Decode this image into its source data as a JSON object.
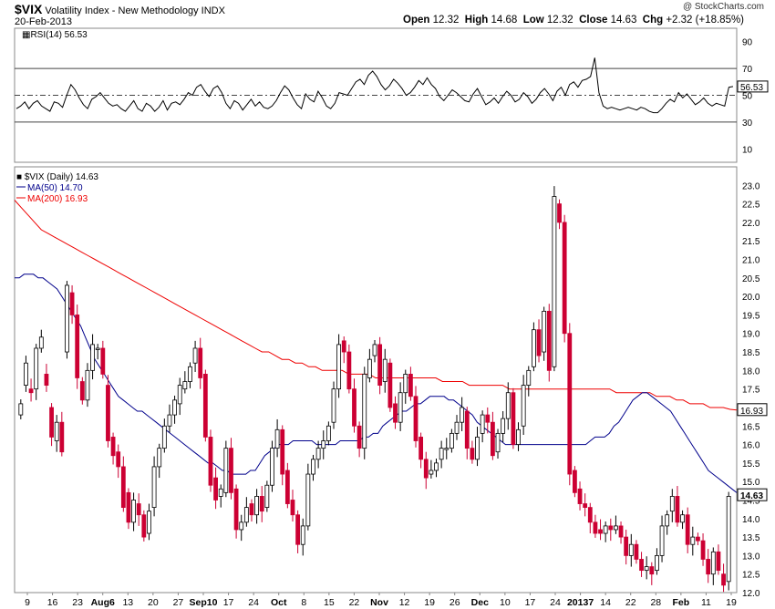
{
  "header": {
    "symbol": "$VIX",
    "name": "Volatility Index - New Methodology",
    "exchange": "INDX",
    "date": "20-Feb-2013",
    "open_label": "Open",
    "open": "12.32",
    "high_label": "High",
    "high": "14.68",
    "low_label": "Low",
    "low": "12.32",
    "close_label": "Close",
    "close": "14.63",
    "chg_label": "Chg",
    "chg": "+2.32 (+18.85%)",
    "watermark": "@ StockCharts.com"
  },
  "chart_data": [
    {
      "type": "line",
      "title": "RSI(14) 56.53",
      "ylim": [
        0,
        100
      ],
      "yticks": [
        "90",
        "70",
        "50",
        "30",
        "10"
      ],
      "reference_lines": [
        70,
        50,
        30
      ],
      "last_value_label": "56.53",
      "values": [
        40,
        42,
        45,
        40,
        44,
        46,
        42,
        40,
        38,
        45,
        44,
        41,
        50,
        58,
        54,
        48,
        43,
        40,
        47,
        49,
        52,
        48,
        44,
        42,
        43,
        40,
        38,
        42,
        46,
        40,
        38,
        44,
        42,
        38,
        41,
        46,
        39,
        44,
        45,
        43,
        47,
        52,
        50,
        56,
        58,
        53,
        49,
        55,
        57,
        52,
        44,
        40,
        46,
        44,
        39,
        43,
        47,
        42,
        45,
        41,
        40,
        42,
        46,
        52,
        57,
        54,
        48,
        43,
        40,
        51,
        47,
        45,
        53,
        48,
        42,
        40,
        44,
        52,
        51,
        50,
        55,
        60,
        62,
        58,
        65,
        68,
        64,
        58,
        54,
        57,
        62,
        59,
        55,
        50,
        52,
        56,
        61,
        58,
        63,
        58,
        55,
        49,
        46,
        50,
        54,
        52,
        49,
        46,
        45,
        51,
        55,
        49,
        43,
        45,
        48,
        44,
        49,
        53,
        50,
        45,
        47,
        52,
        49,
        44,
        47,
        52,
        55,
        51,
        46,
        53,
        56,
        50,
        58,
        60,
        56,
        61,
        62,
        64,
        78,
        52,
        42,
        40,
        41,
        40,
        39,
        40,
        41,
        40,
        39,
        41,
        40,
        38,
        37,
        37,
        40,
        44,
        47,
        45,
        52,
        48,
        51,
        47,
        43,
        45,
        48,
        44,
        42,
        44,
        43,
        42,
        56,
        56.5
      ]
    },
    {
      "type": "candlestick",
      "title": "$VIX (Daily) 14.63",
      "ylim": [
        12.0,
        23.5
      ],
      "yticks": [
        "23.0",
        "22.5",
        "22.0",
        "21.5",
        "21.0",
        "20.5",
        "20.0",
        "19.5",
        "19.0",
        "18.5",
        "18.0",
        "17.5",
        "17.0",
        "16.5",
        "16.0",
        "15.5",
        "15.0",
        "14.5",
        "14.0",
        "13.5",
        "13.0",
        "12.5",
        "12.0"
      ],
      "last_labels": [
        "16.93",
        "14.63"
      ],
      "series": [
        {
          "name": "MA(50) 14.70",
          "color": "#00008b"
        },
        {
          "name": "MA(200) 16.93",
          "color": "#ee0000"
        }
      ],
      "x_labels": [
        "9",
        "16",
        "23",
        "Aug6",
        "13",
        "20",
        "27",
        "Sep10",
        "17",
        "24",
        "Oct",
        "8",
        "15",
        "22",
        "Nov",
        "12",
        "19",
        "26",
        "Dec",
        "10",
        "17",
        "24",
        "20137",
        "14",
        "22",
        "28",
        "Feb",
        "11",
        "19"
      ],
      "close": [
        17.1,
        18.2,
        17.4,
        18.6,
        18.9,
        17.6,
        16.2,
        16.6,
        15.8,
        20.3,
        19.5,
        17.8,
        17.2,
        18.0,
        18.7,
        18.6,
        17.9,
        16.1,
        15.7,
        15.4,
        14.3,
        13.9,
        14.5,
        14.1,
        13.5,
        14.2,
        15.4,
        15.9,
        16.5,
        16.8,
        17.2,
        17.6,
        17.7,
        18.1,
        18.6,
        17.8,
        16.2,
        14.9,
        14.5,
        14.8,
        15.9,
        14.7,
        13.7,
        13.9,
        14.3,
        14.1,
        14.6,
        14.2,
        14.9,
        15.9,
        16.4,
        15.2,
        14.4,
        14.1,
        13.3,
        13.8,
        15.2,
        15.6,
        15.9,
        16.1,
        16.5,
        17.5,
        18.7,
        18.5,
        17.5,
        16.5,
        15.9,
        17.9,
        18.3,
        18.7,
        17.6,
        18.3,
        17.0,
        16.6,
        17.4,
        17.9,
        17.3,
        16.1,
        15.6,
        15.1,
        15.3,
        15.5,
        15.9,
        15.9,
        16.3,
        16.6,
        17.0,
        15.9,
        15.6,
        16.2,
        16.8,
        16.6,
        15.7,
        16.3,
        16.7,
        17.4,
        16.0,
        16.4,
        17.6,
        18.0,
        19.1,
        18.4,
        19.6,
        18.0,
        22.7,
        22.0,
        19.0,
        15.2,
        14.7,
        14.4,
        14.3,
        13.9,
        13.6,
        13.6,
        13.8,
        13.7,
        13.8,
        13.5,
        13.0,
        13.3,
        12.9,
        12.6,
        12.7,
        12.5,
        13.0,
        13.8,
        14.1,
        14.6,
        13.9,
        14.1,
        13.3,
        13.5,
        13.4,
        12.9,
        12.5,
        13.1,
        12.6,
        12.2,
        14.6
      ],
      "open": [
        16.8,
        17.6,
        17.5,
        17.5,
        18.6,
        17.9,
        17.0,
        16.1,
        16.6,
        18.5,
        20.1,
        19.5,
        17.7,
        17.2,
        18.0,
        18.6,
        18.6,
        17.6,
        16.2,
        15.8,
        15.4,
        14.7,
        13.9,
        14.4,
        14.1,
        13.6,
        14.3,
        15.4,
        15.9,
        16.5,
        16.8,
        17.1,
        17.5,
        17.7,
        18.2,
        18.6,
        17.9,
        16.2,
        15.1,
        14.6,
        14.7,
        15.9,
        14.8,
        13.7,
        13.9,
        14.4,
        14.1,
        14.6,
        14.3,
        14.9,
        15.9,
        16.4,
        15.3,
        14.5,
        14.1,
        13.3,
        13.8,
        15.2,
        15.6,
        15.9,
        16.1,
        16.6,
        17.5,
        18.8,
        18.5,
        17.5,
        16.5,
        15.9,
        17.8,
        18.4,
        18.7,
        17.7,
        18.2,
        17.1,
        16.6,
        17.4,
        17.9,
        17.3,
        16.2,
        15.6,
        15.2,
        15.3,
        15.6,
        15.9,
        15.9,
        16.3,
        16.6,
        16.9,
        15.9,
        15.6,
        16.3,
        16.8,
        16.6,
        15.8,
        16.3,
        16.7,
        17.4,
        16.0,
        16.5,
        17.6,
        18.1,
        19.1,
        18.5,
        19.6,
        18.1,
        22.5,
        22.0,
        19.0,
        15.3,
        14.8,
        14.4,
        14.3,
        13.9,
        13.7,
        13.6,
        13.8,
        13.7,
        13.8,
        13.5,
        13.0,
        13.3,
        12.9,
        12.6,
        12.7,
        12.6,
        13.0,
        13.8,
        14.2,
        14.6,
        13.9,
        14.1,
        13.3,
        13.5,
        13.4,
        12.9,
        12.5,
        13.1,
        12.5,
        12.3
      ],
      "ma50": [
        20.5,
        20.5,
        20.6,
        20.6,
        20.6,
        20.5,
        20.5,
        20.4,
        20.3,
        20.2,
        20.0,
        19.8,
        19.6,
        19.4,
        19.2,
        18.9,
        18.6,
        18.3,
        18.1,
        17.9,
        17.7,
        17.5,
        17.3,
        17.2,
        17.1,
        17.0,
        16.9,
        16.9,
        16.8,
        16.7,
        16.6,
        16.5,
        16.4,
        16.3,
        16.2,
        16.1,
        16.0,
        15.9,
        15.8,
        15.7,
        15.6,
        15.5,
        15.5,
        15.4,
        15.3,
        15.3,
        15.2,
        15.2,
        15.2,
        15.2,
        15.3,
        15.3,
        15.5,
        15.7,
        15.8,
        15.9,
        16.0,
        16.0,
        16.0,
        16.1,
        16.1,
        16.1,
        16.1,
        16.1,
        16.0,
        16.0,
        16.0,
        16.0,
        16.0,
        16.1,
        16.1,
        16.1,
        16.1,
        16.1,
        16.2,
        16.2,
        16.3,
        16.3,
        16.5,
        16.6,
        16.7,
        16.8,
        16.9,
        16.9,
        17.0,
        17.1,
        17.1,
        17.2,
        17.3,
        17.3,
        17.3,
        17.3,
        17.2,
        17.2,
        17.1,
        17.0,
        16.9,
        16.8,
        16.6,
        16.5,
        16.4,
        16.3,
        16.2,
        16.1,
        16.0,
        16.0,
        16.0,
        16.0,
        16.0,
        16.0,
        16.0,
        16.0,
        16.0,
        16.0,
        16.0,
        16.0,
        16.0,
        16.0,
        16.0,
        16.0,
        16.0,
        16.0,
        16.1,
        16.2,
        16.2,
        16.2,
        16.3,
        16.5,
        16.6,
        16.8,
        17.0,
        17.2,
        17.3,
        17.4,
        17.4,
        17.3,
        17.2,
        17.1,
        17.0,
        16.9,
        16.7,
        16.5,
        16.3,
        16.1,
        15.9,
        15.7,
        15.5,
        15.3,
        15.2,
        15.1,
        15.0,
        14.9,
        14.8,
        14.7
      ],
      "ma200": [
        22.6,
        22.4,
        22.2,
        22.0,
        21.8,
        21.7,
        21.6,
        21.5,
        21.4,
        21.3,
        21.2,
        21.1,
        21.0,
        20.9,
        20.8,
        20.7,
        20.6,
        20.5,
        20.4,
        20.3,
        20.2,
        20.1,
        20.0,
        19.9,
        19.8,
        19.7,
        19.6,
        19.5,
        19.4,
        19.3,
        19.2,
        19.1,
        19.0,
        18.9,
        18.8,
        18.7,
        18.6,
        18.5,
        18.5,
        18.4,
        18.3,
        18.3,
        18.2,
        18.2,
        18.1,
        18.1,
        18.0,
        18.0,
        18.0,
        18.0,
        17.9,
        17.9,
        17.9,
        17.9,
        17.8,
        17.8,
        17.8,
        17.8,
        17.8,
        17.8,
        17.8,
        17.8,
        17.8,
        17.8,
        17.7,
        17.7,
        17.7,
        17.7,
        17.6,
        17.6,
        17.6,
        17.6,
        17.6,
        17.6,
        17.5,
        17.5,
        17.5,
        17.5,
        17.5,
        17.5,
        17.5,
        17.5,
        17.5,
        17.5,
        17.5,
        17.5,
        17.5,
        17.5,
        17.5,
        17.5,
        17.4,
        17.4,
        17.4,
        17.4,
        17.4,
        17.4,
        17.3,
        17.3,
        17.3,
        17.2,
        17.2,
        17.1,
        17.1,
        17.1,
        17.0,
        17.0,
        17.0,
        16.95,
        16.93
      ]
    }
  ]
}
